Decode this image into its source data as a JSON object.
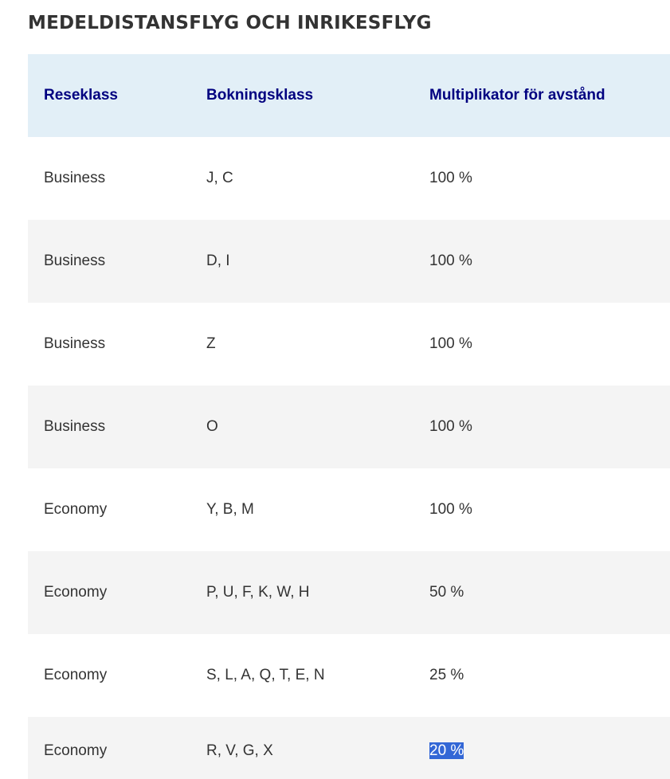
{
  "section": {
    "title": "MEDELDISTANSFLYG OCH INRIKESFLYG"
  },
  "table": {
    "headers": {
      "travel_class": "Reseklass",
      "booking_class": "Bokningsklass",
      "multiplier": "Multiplikator för avstånd"
    },
    "rows": [
      {
        "travel_class": "Business",
        "booking_class": "J, C",
        "multiplier": "100 %"
      },
      {
        "travel_class": "Business",
        "booking_class": "D, I",
        "multiplier": "100 %"
      },
      {
        "travel_class": "Business",
        "booking_class": "Z",
        "multiplier": "100 %"
      },
      {
        "travel_class": "Business",
        "booking_class": "O",
        "multiplier": "100 %"
      },
      {
        "travel_class": "Economy",
        "booking_class": "Y, B, M",
        "multiplier": "100 %"
      },
      {
        "travel_class": "Economy",
        "booking_class": "P, U, F, K, W, H",
        "multiplier": "50 %"
      },
      {
        "travel_class": "Economy",
        "booking_class": "S, L, A, Q, T, E, N",
        "multiplier": "25 %"
      },
      {
        "travel_class": "Economy",
        "booking_class": "R, V, G, X",
        "multiplier": "20 %"
      }
    ]
  },
  "colors": {
    "title_text": "#333333",
    "header_background": "#e2eff7",
    "header_text": "#000080",
    "body_text": "#333333",
    "striped_row_background": "#f4f4f4",
    "selection_highlight": "#3367d6"
  }
}
